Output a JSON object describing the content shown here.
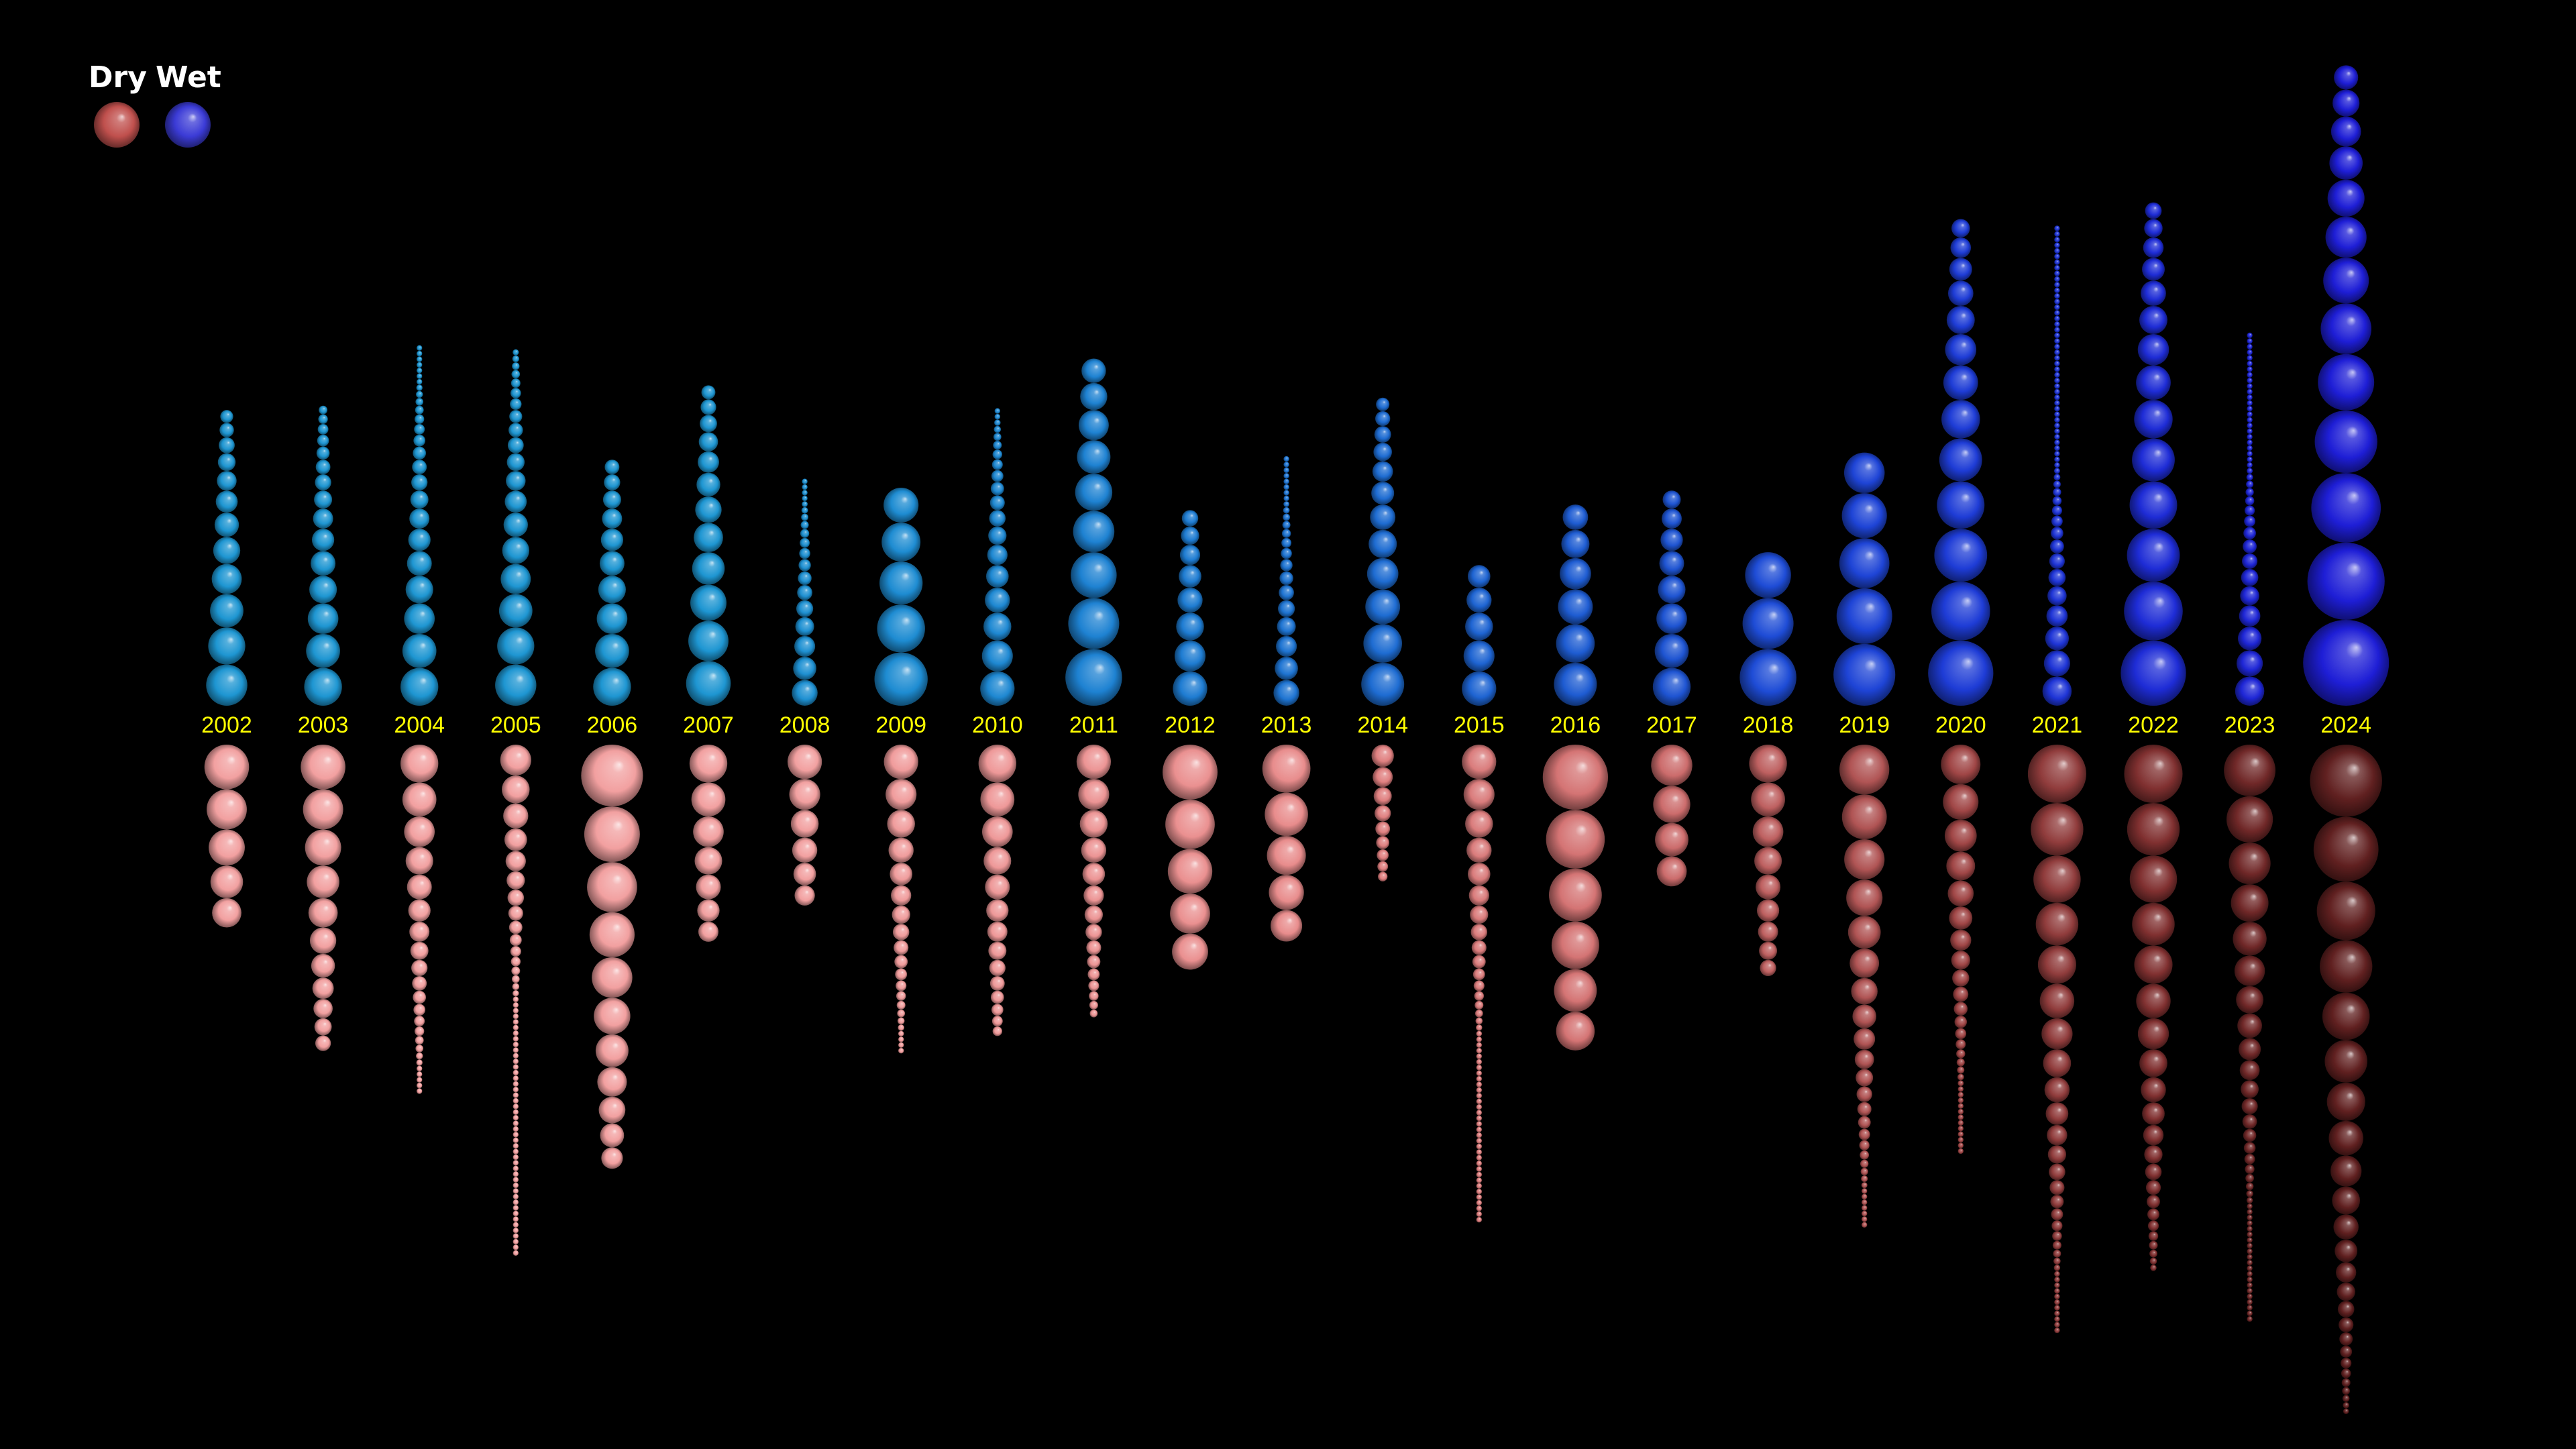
{
  "legend": {
    "dry_label": "Dry",
    "wet_label": "Wet",
    "dry_color": "#c0504d",
    "wet_color": "#3b3bd6"
  },
  "chart_data": {
    "type": "other",
    "subtype": "stacked sphere columns per year (wet spells above, dry spells below)",
    "title": "",
    "categories": [
      "2002",
      "2003",
      "2004",
      "2005",
      "2006",
      "2007",
      "2008",
      "2009",
      "2010",
      "2011",
      "2012",
      "2013",
      "2014",
      "2015",
      "2016",
      "2017",
      "2018",
      "2019",
      "2020",
      "2021",
      "2022",
      "2023",
      "2024"
    ],
    "series": [
      {
        "name": "Wet",
        "direction": "up",
        "colors": [
          "#1e96d2",
          "#1e96d2",
          "#1e96d2",
          "#1e96d2",
          "#1e96d2",
          "#1e96d2",
          "#1e90d2",
          "#1e8cd2",
          "#1e88d2",
          "#1e82d2",
          "#1e7cd2",
          "#1e74d2",
          "#1e6cd2",
          "#1e64d2",
          "#1e5cd2",
          "#1e54d2",
          "#1e4cd6",
          "#1e44d6",
          "#1e3cd6",
          "#1e34d6",
          "#1e2cd6",
          "#1e26d6",
          "#1e1ed6"
        ],
        "tip_extent": [
          0.43,
          0.44,
          0.53,
          0.53,
          0.36,
          0.47,
          0.34,
          0.33,
          0.44,
          0.51,
          0.28,
          0.37,
          0.45,
          0.22,
          0.31,
          0.33,
          0.23,
          0.38,
          0.71,
          0.71,
          0.74,
          0.55,
          0.93
        ],
        "largest_size": [
          0.48,
          0.44,
          0.44,
          0.48,
          0.44,
          0.52,
          0.3,
          0.62,
          0.4,
          0.66,
          0.4,
          0.3,
          0.5,
          0.4,
          0.5,
          0.44,
          0.66,
          0.72,
          0.76,
          0.34,
          0.76,
          0.34,
          1.0
        ]
      },
      {
        "name": "Dry",
        "direction": "down",
        "colors": [
          "#f2a0a0",
          "#f2a0a0",
          "#f2a0a0",
          "#f2a0a0",
          "#f2a0a0",
          "#f2a0a0",
          "#f2a0a0",
          "#f09c9c",
          "#ee9898",
          "#ec9494",
          "#ea9090",
          "#e88c8c",
          "#e08080",
          "#da7c7c",
          "#d47474",
          "#cc6c6c",
          "#be6060",
          "#b05454",
          "#a04646",
          "#903c3c",
          "#803030",
          "#702828",
          "#602020"
        ],
        "tip_extent": [
          0.28,
          0.46,
          0.52,
          0.76,
          0.62,
          0.29,
          0.23,
          0.46,
          0.44,
          0.41,
          0.33,
          0.31,
          0.2,
          0.71,
          0.48,
          0.23,
          0.35,
          0.72,
          0.61,
          0.88,
          0.78,
          0.86,
          1.0
        ],
        "largest_size": [
          0.52,
          0.52,
          0.44,
          0.36,
          0.72,
          0.44,
          0.4,
          0.4,
          0.44,
          0.4,
          0.64,
          0.56,
          0.26,
          0.4,
          0.76,
          0.48,
          0.44,
          0.58,
          0.46,
          0.68,
          0.68,
          0.6,
          0.84
        ]
      }
    ],
    "legend_position": "top-left",
    "grid": false
  }
}
